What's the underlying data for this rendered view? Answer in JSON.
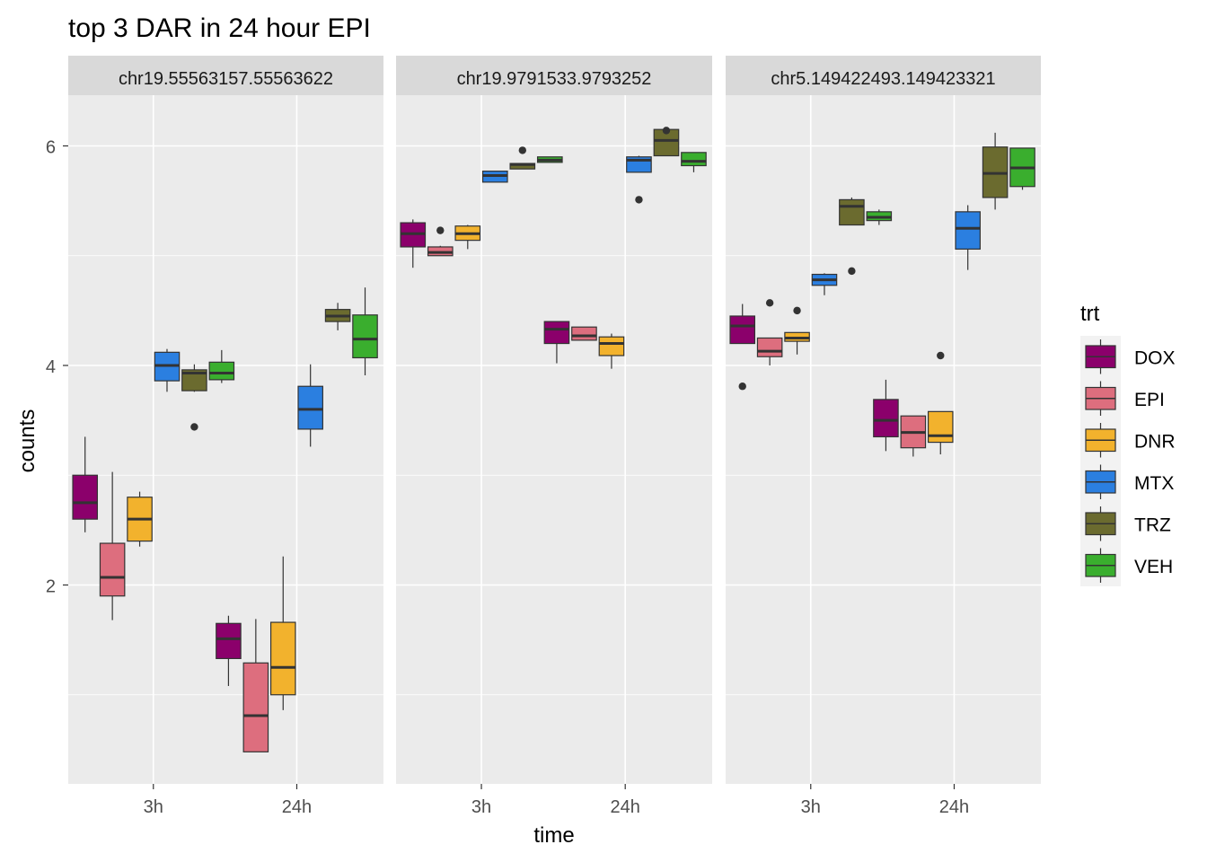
{
  "chart_data": {
    "type": "box",
    "title": "top 3 DAR in 24 hour EPI",
    "xlabel": "time",
    "ylabel": "counts",
    "ylim": [
      0.3,
      6.5
    ],
    "y_ticks": [
      2,
      4,
      6
    ],
    "x_categories": [
      "3h",
      "24h"
    ],
    "legend": {
      "title": "trt",
      "position": "right",
      "items": [
        {
          "name": "DOX",
          "color": "#8B006B"
        },
        {
          "name": "EPI",
          "color": "#DD6E7E"
        },
        {
          "name": "DNR",
          "color": "#F2B22D"
        },
        {
          "name": "MTX",
          "color": "#2B7FE0"
        },
        {
          "name": "TRZ",
          "color": "#6B6B2F"
        },
        {
          "name": "VEH",
          "color": "#3AAE2E"
        }
      ]
    },
    "panel_background": "#EBEBEB",
    "strip_background": "#D9D9D9",
    "facets": [
      {
        "label": "chr19.55563157.55563622",
        "boxes": [
          {
            "time": "3h",
            "trt": "DOX",
            "min": 2.48,
            "q1": 2.6,
            "median": 2.75,
            "q3": 3.0,
            "max": 3.35,
            "outliers": []
          },
          {
            "time": "3h",
            "trt": "EPI",
            "min": 1.68,
            "q1": 1.9,
            "median": 2.07,
            "q3": 2.38,
            "max": 3.03,
            "outliers": []
          },
          {
            "time": "3h",
            "trt": "DNR",
            "min": 2.35,
            "q1": 2.4,
            "median": 2.6,
            "q3": 2.8,
            "max": 2.85,
            "outliers": []
          },
          {
            "time": "3h",
            "trt": "MTX",
            "min": 3.76,
            "q1": 3.86,
            "median": 4.0,
            "q3": 4.12,
            "max": 4.15,
            "outliers": []
          },
          {
            "time": "3h",
            "trt": "TRZ",
            "min": 3.76,
            "q1": 3.77,
            "median": 3.93,
            "q3": 3.96,
            "max": 4.01,
            "outliers": [
              3.44
            ]
          },
          {
            "time": "3h",
            "trt": "VEH",
            "min": 3.84,
            "q1": 3.87,
            "median": 3.93,
            "q3": 4.03,
            "max": 4.14,
            "outliers": []
          },
          {
            "time": "24h",
            "trt": "DOX",
            "min": 1.08,
            "q1": 1.33,
            "median": 1.51,
            "q3": 1.65,
            "max": 1.72,
            "outliers": []
          },
          {
            "time": "24h",
            "trt": "EPI",
            "min": 0.48,
            "q1": 0.48,
            "median": 0.81,
            "q3": 1.29,
            "max": 1.69,
            "outliers": []
          },
          {
            "time": "24h",
            "trt": "DNR",
            "min": 0.86,
            "q1": 1.0,
            "median": 1.25,
            "q3": 1.66,
            "max": 2.26,
            "outliers": []
          },
          {
            "time": "24h",
            "trt": "MTX",
            "min": 3.26,
            "q1": 3.42,
            "median": 3.6,
            "q3": 3.81,
            "max": 4.01,
            "outliers": []
          },
          {
            "time": "24h",
            "trt": "TRZ",
            "min": 4.32,
            "q1": 4.4,
            "median": 4.45,
            "q3": 4.51,
            "max": 4.57,
            "outliers": []
          },
          {
            "time": "24h",
            "trt": "VEH",
            "min": 3.91,
            "q1": 4.07,
            "median": 4.24,
            "q3": 4.46,
            "max": 4.71,
            "outliers": []
          }
        ]
      },
      {
        "label": "chr19.9791533.9793252",
        "boxes": [
          {
            "time": "3h",
            "trt": "DOX",
            "min": 4.89,
            "q1": 5.08,
            "median": 5.2,
            "q3": 5.3,
            "max": 5.33,
            "outliers": []
          },
          {
            "time": "3h",
            "trt": "EPI",
            "min": 5.0,
            "q1": 5.0,
            "median": 5.03,
            "q3": 5.08,
            "max": 5.09,
            "outliers": [
              5.23
            ]
          },
          {
            "time": "3h",
            "trt": "DNR",
            "min": 5.06,
            "q1": 5.14,
            "median": 5.2,
            "q3": 5.27,
            "max": 5.28,
            "outliers": []
          },
          {
            "time": "3h",
            "trt": "MTX",
            "min": 5.67,
            "q1": 5.67,
            "median": 5.73,
            "q3": 5.77,
            "max": 5.77,
            "outliers": []
          },
          {
            "time": "3h",
            "trt": "TRZ",
            "min": 5.79,
            "q1": 5.79,
            "median": 5.83,
            "q3": 5.84,
            "max": 5.84,
            "outliers": [
              5.96
            ]
          },
          {
            "time": "3h",
            "trt": "VEH",
            "min": 5.85,
            "q1": 5.85,
            "median": 5.87,
            "q3": 5.9,
            "max": 5.9,
            "outliers": []
          },
          {
            "time": "24h",
            "trt": "DOX",
            "min": 4.02,
            "q1": 4.2,
            "median": 4.33,
            "q3": 4.4,
            "max": 4.4,
            "outliers": []
          },
          {
            "time": "24h",
            "trt": "EPI",
            "min": 4.23,
            "q1": 4.23,
            "median": 4.27,
            "q3": 4.35,
            "max": 4.35,
            "outliers": []
          },
          {
            "time": "24h",
            "trt": "DNR",
            "min": 3.97,
            "q1": 4.09,
            "median": 4.2,
            "q3": 4.26,
            "max": 4.29,
            "outliers": []
          },
          {
            "time": "24h",
            "trt": "MTX",
            "min": 5.76,
            "q1": 5.76,
            "median": 5.87,
            "q3": 5.9,
            "max": 5.91,
            "outliers": [
              5.51
            ]
          },
          {
            "time": "24h",
            "trt": "TRZ",
            "min": 5.91,
            "q1": 5.91,
            "median": 6.05,
            "q3": 6.15,
            "max": 6.15,
            "outliers": [
              6.14
            ]
          },
          {
            "time": "24h",
            "trt": "VEH",
            "min": 5.76,
            "q1": 5.82,
            "median": 5.86,
            "q3": 5.94,
            "max": 5.94,
            "outliers": []
          }
        ]
      },
      {
        "label": "chr5.149422493.149423321",
        "boxes": [
          {
            "time": "3h",
            "trt": "DOX",
            "min": 4.2,
            "q1": 4.2,
            "median": 4.36,
            "q3": 4.45,
            "max": 4.56,
            "outliers": [
              3.81
            ]
          },
          {
            "time": "3h",
            "trt": "EPI",
            "min": 4.0,
            "q1": 4.08,
            "median": 4.13,
            "q3": 4.25,
            "max": 4.25,
            "outliers": [
              4.57
            ]
          },
          {
            "time": "3h",
            "trt": "DNR",
            "min": 4.1,
            "q1": 4.22,
            "median": 4.25,
            "q3": 4.3,
            "max": 4.3,
            "outliers": [
              4.5
            ]
          },
          {
            "time": "3h",
            "trt": "MTX",
            "min": 4.64,
            "q1": 4.73,
            "median": 4.78,
            "q3": 4.83,
            "max": 4.84,
            "outliers": []
          },
          {
            "time": "3h",
            "trt": "TRZ",
            "min": 5.28,
            "q1": 5.28,
            "median": 5.45,
            "q3": 5.51,
            "max": 5.53,
            "outliers": [
              4.86
            ]
          },
          {
            "time": "3h",
            "trt": "VEH",
            "min": 5.28,
            "q1": 5.32,
            "median": 5.35,
            "q3": 5.4,
            "max": 5.42,
            "outliers": []
          },
          {
            "time": "24h",
            "trt": "DOX",
            "min": 3.22,
            "q1": 3.35,
            "median": 3.5,
            "q3": 3.69,
            "max": 3.87,
            "outliers": []
          },
          {
            "time": "24h",
            "trt": "EPI",
            "min": 3.17,
            "q1": 3.25,
            "median": 3.39,
            "q3": 3.54,
            "max": 3.54,
            "outliers": []
          },
          {
            "time": "24h",
            "trt": "DNR",
            "min": 3.19,
            "q1": 3.3,
            "median": 3.36,
            "q3": 3.58,
            "max": 3.58,
            "outliers": [
              4.09
            ]
          },
          {
            "time": "24h",
            "trt": "MTX",
            "min": 4.87,
            "q1": 5.06,
            "median": 5.25,
            "q3": 5.4,
            "max": 5.46,
            "outliers": []
          },
          {
            "time": "24h",
            "trt": "TRZ",
            "min": 5.42,
            "q1": 5.53,
            "median": 5.75,
            "q3": 5.99,
            "max": 6.12,
            "outliers": []
          },
          {
            "time": "24h",
            "trt": "VEH",
            "min": 5.6,
            "q1": 5.63,
            "median": 5.8,
            "q3": 5.98,
            "max": 5.98,
            "outliers": []
          }
        ]
      }
    ]
  }
}
